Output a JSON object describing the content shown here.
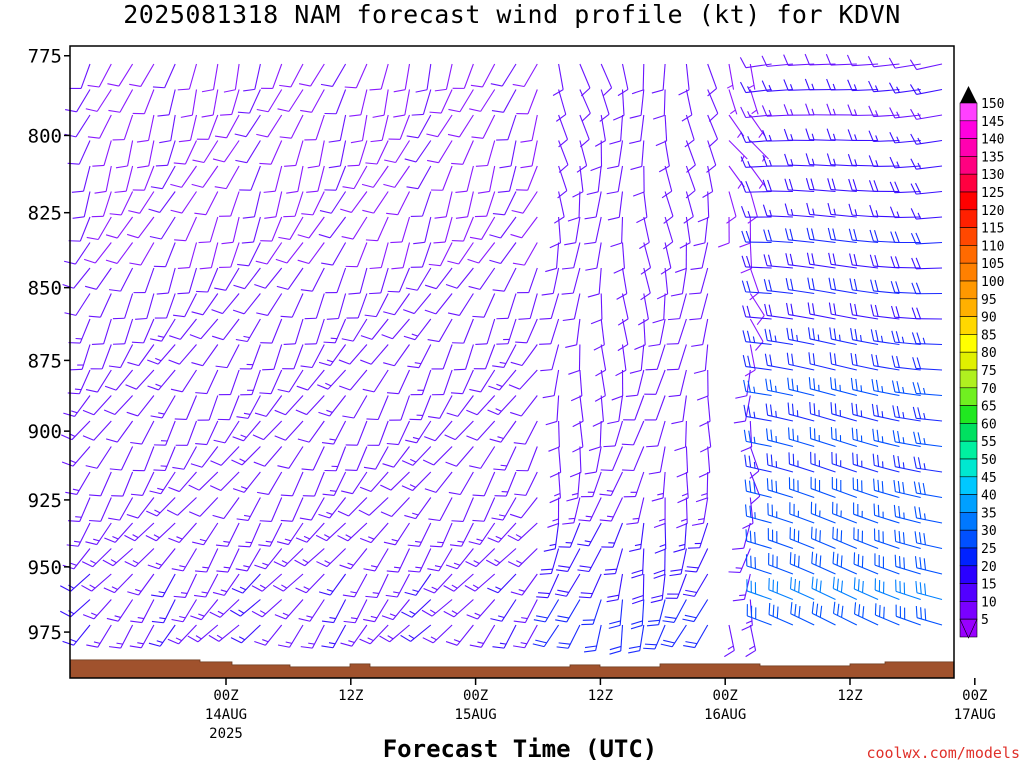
{
  "title": "2025081318 NAM forecast wind profile (kt) for KDVN",
  "credit": "coolwx.com/models",
  "colors": {
    "terrain": "#a0522d",
    "frame": "#000000"
  },
  "chart_data": {
    "type": "wind_barb_profile",
    "title": "2025081318 NAM forecast wind profile (kt) for KDVN",
    "xlabel": "Forecast Time (UTC)",
    "ylabel": "",
    "y_axis": {
      "ticks": [
        775,
        800,
        825,
        850,
        875,
        900,
        925,
        950,
        975
      ],
      "range_hPa": [
        772,
        993
      ],
      "scale": "log-pressure"
    },
    "x_axis": {
      "range_hours": [
        -15,
        70
      ],
      "ticks": [
        {
          "hour": 0,
          "label": "00Z",
          "sub": "14AUG",
          "sub2": "2025"
        },
        {
          "hour": 12,
          "label": "12Z",
          "sub": "",
          "sub2": ""
        },
        {
          "hour": 24,
          "label": "00Z",
          "sub": "15AUG",
          "sub2": ""
        },
        {
          "hour": 36,
          "label": "12Z",
          "sub": "",
          "sub2": ""
        },
        {
          "hour": 48,
          "label": "00Z",
          "sub": "16AUG",
          "sub2": ""
        },
        {
          "hour": 60,
          "label": "12Z",
          "sub": "",
          "sub2": ""
        },
        {
          "hour": 72,
          "label": "00Z",
          "sub": "17AUG",
          "sub2": ""
        }
      ]
    },
    "colorbar": {
      "units": "kt",
      "levels": [
        5,
        10,
        15,
        20,
        25,
        30,
        35,
        40,
        45,
        50,
        55,
        60,
        65,
        70,
        75,
        80,
        85,
        90,
        95,
        100,
        105,
        110,
        115,
        120,
        125,
        130,
        135,
        140,
        145,
        150
      ],
      "colors": [
        "#9900ff",
        "#7a00ff",
        "#5200ff",
        "#2a00ff",
        "#0022ff",
        "#0050ff",
        "#0078ff",
        "#00a0ff",
        "#00c8ff",
        "#00e8d0",
        "#00f0a0",
        "#00e060",
        "#20e820",
        "#70f020",
        "#b0f020",
        "#e0f000",
        "#ffff00",
        "#ffd800",
        "#ffb000",
        "#ff9800",
        "#ff8000",
        "#ff6a00",
        "#ff4800",
        "#ff2000",
        "#ff0000",
        "#ff0040",
        "#ff0080",
        "#ff00b0",
        "#ff00e0",
        "#ff40ff"
      ]
    },
    "terrain": {
      "surface_pressure_hPa": 989
    }
  }
}
